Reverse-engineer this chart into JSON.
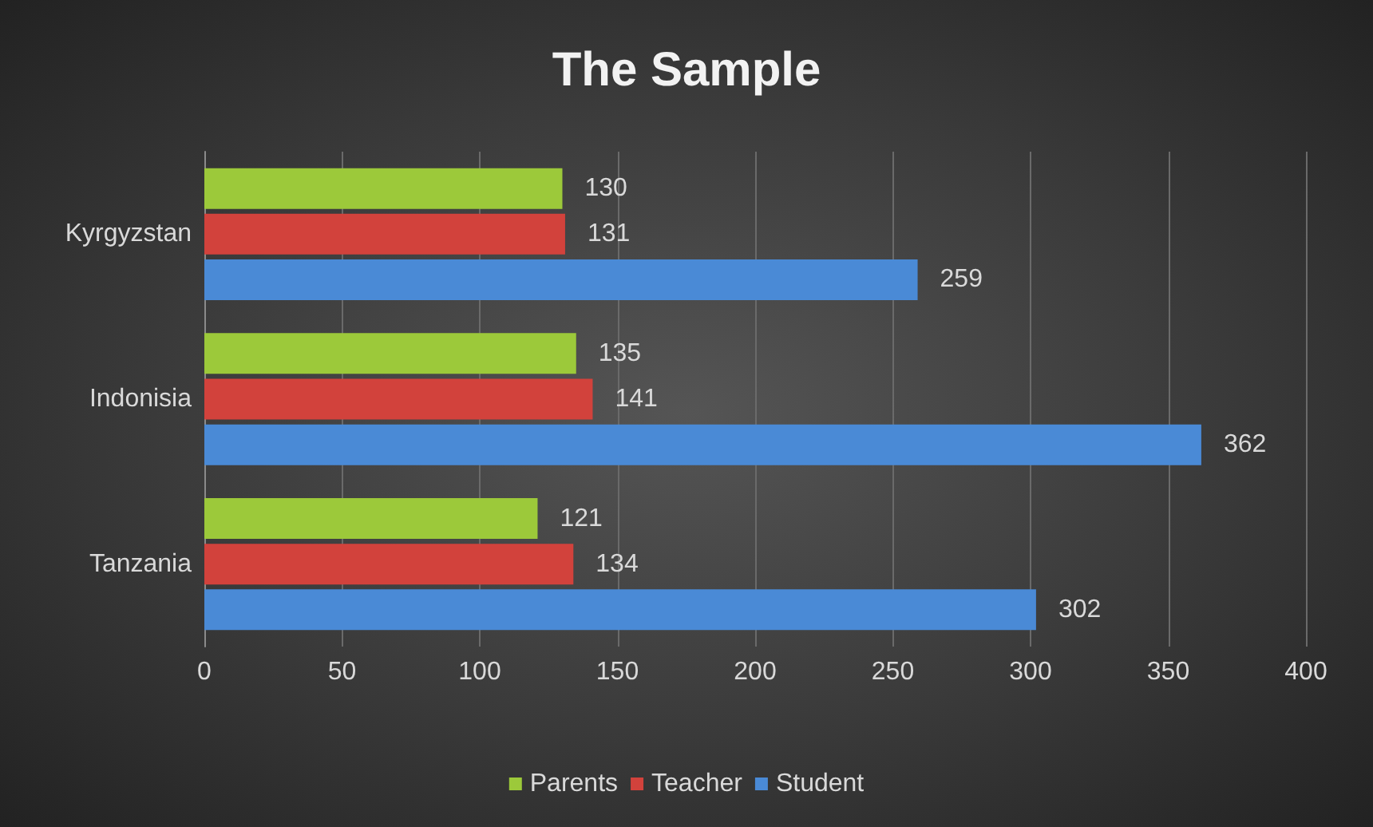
{
  "chart_data": {
    "type": "bar",
    "title": "The Sample",
    "orientation": "horizontal",
    "categories": [
      "Kyrgyzstan",
      "Indonisia",
      "Tanzania"
    ],
    "series": [
      {
        "name": "Parents",
        "color": "#9cc93a",
        "values": [
          130,
          135,
          121
        ]
      },
      {
        "name": "Teacher",
        "color": "#d2423c",
        "values": [
          131,
          141,
          134
        ]
      },
      {
        "name": "Student",
        "color": "#4a8ad6",
        "values": [
          259,
          362,
          302
        ]
      }
    ],
    "xlim": [
      0,
      400
    ],
    "xticks": [
      0,
      50,
      100,
      150,
      200,
      250,
      300,
      350,
      400
    ],
    "grid": "x",
    "legend": "bottom",
    "data_labels": true
  }
}
